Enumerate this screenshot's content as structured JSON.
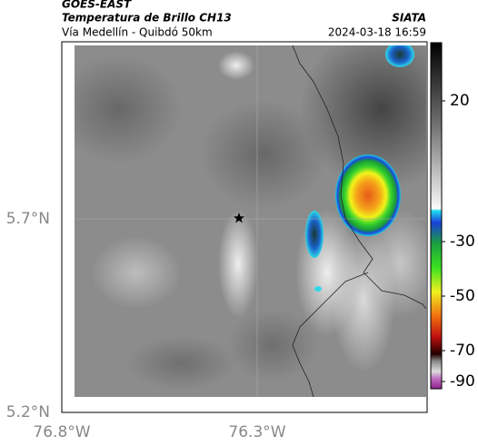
{
  "header": {
    "source": "GOES-EAST",
    "title": "Temperatura de Brillo CH13",
    "subtitle": "Vía Medellín - Quibdó 50km",
    "brand": "SIATA",
    "timestamp": "2024-03-18 16:59"
  },
  "map": {
    "lat_labels": [
      "5.7°N",
      "5.2°N"
    ],
    "lon_labels": [
      "76.8°W",
      "76.3°W"
    ]
  },
  "colorbar": {
    "ticks": [
      20,
      -30,
      -50,
      -70,
      -90
    ]
  }
}
